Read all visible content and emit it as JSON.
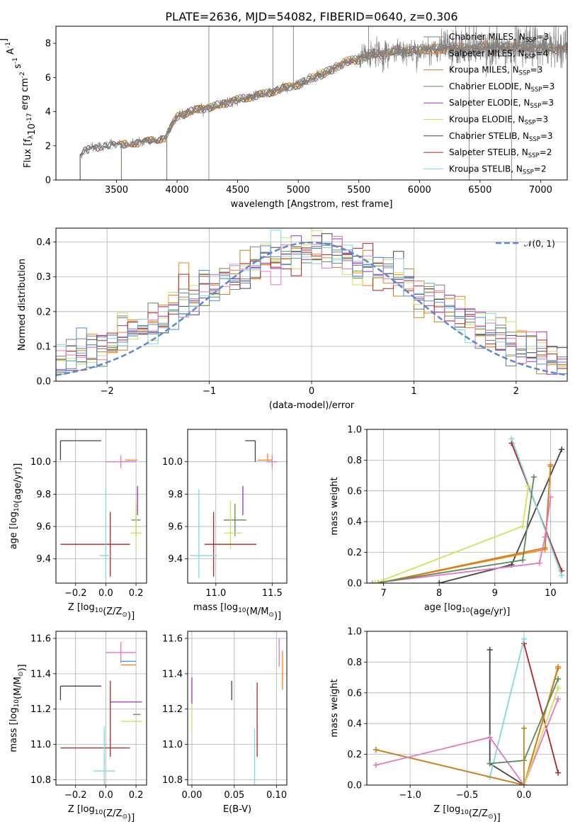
{
  "figure": {
    "title": "PLATE=2636, MJD=54082, FIBERID=0640, z=0.306"
  },
  "colors": {
    "Chabrier MILES": "#7f7f7f",
    "Salpeter MILES": "#ff7f0e",
    "Kroupa MILES": "#c8821e",
    "Chabrier ELODIE": "#5a8a5a",
    "Salpeter ELODIE": "#9b30c0",
    "Kroupa ELODIE": "#d2e05a",
    "Chabrier STELIB": "#444444",
    "Salpeter STELIB": "#b22222",
    "Kroupa STELIB": "#7fd7e0",
    "pink": "#e377c2",
    "blue": "#4f8fd0",
    "normal": "#5b87d6"
  },
  "chart_data": [
    {
      "id": "spectrum",
      "type": "line",
      "xlabel": "wavelength [Angstrom, rest frame]",
      "ylabel": "Flux [f$_\\lambda$10$^{-17}$ erg cm$^{-2}$ s$^{-1}$ A$^{-1}$]",
      "xlim": [
        3000,
        7220
      ],
      "ylim": [
        0,
        9
      ],
      "xticks": [
        3500,
        4000,
        4500,
        5000,
        5500,
        6000,
        6500,
        7000
      ],
      "yticks": [
        0,
        2,
        4,
        6,
        8
      ],
      "legend_position": "top-right",
      "legend": [
        {
          "label": "Chabrier MILES, N",
          "sub": "SSP",
          "suffix": "=3"
        },
        {
          "label": "Salpeter MILES, N",
          "sub": "SSP",
          "suffix": "=4"
        },
        {
          "label": "Kroupa MILES, N",
          "sub": "SSP",
          "suffix": "=3"
        },
        {
          "label": "Chabrier ELODIE, N",
          "sub": "SSP",
          "suffix": "=3"
        },
        {
          "label": "Salpeter ELODIE, N",
          "sub": "SSP",
          "suffix": "=3"
        },
        {
          "label": "Kroupa ELODIE, N",
          "sub": "SSP",
          "suffix": "=3"
        },
        {
          "label": "Chabrier STELIB, N",
          "sub": "SSP",
          "suffix": "=3"
        },
        {
          "label": "Salpeter STELIB, N",
          "sub": "SSP",
          "suffix": "=2"
        },
        {
          "label": "Kroupa STELIB, N",
          "sub": "SSP",
          "suffix": "=2"
        }
      ],
      "continuum": [
        [
          3200,
          1.5
        ],
        [
          3300,
          1.9
        ],
        [
          3400,
          2.0
        ],
        [
          3600,
          2.1
        ],
        [
          3700,
          2.2
        ],
        [
          3800,
          2.3
        ],
        [
          3900,
          2.5
        ],
        [
          4000,
          3.7
        ],
        [
          4100,
          4.0
        ],
        [
          4300,
          4.3
        ],
        [
          4500,
          4.7
        ],
        [
          4700,
          5.0
        ],
        [
          4900,
          5.4
        ],
        [
          5000,
          5.6
        ],
        [
          5200,
          6.2
        ],
        [
          5400,
          6.9
        ],
        [
          5600,
          7.3
        ],
        [
          5800,
          7.5
        ],
        [
          6000,
          7.6
        ],
        [
          6200,
          7.7
        ],
        [
          6400,
          7.7
        ],
        [
          6600,
          7.8
        ],
        [
          6800,
          7.8
        ],
        [
          7000,
          7.7
        ]
      ],
      "spikes": [
        [
          4262,
          9.0
        ],
        [
          4262,
          0.0
        ],
        [
          4790,
          9.0
        ],
        [
          4960,
          9.0
        ],
        [
          5580,
          9.0
        ],
        [
          6300,
          9.0
        ],
        [
          6410,
          0.0
        ],
        [
          6760,
          0.0
        ],
        [
          6790,
          9.0
        ]
      ]
    },
    {
      "id": "residual-histogram",
      "type": "histogram",
      "xlabel": "(data-model)/error",
      "ylabel": "Normed distribution",
      "xlim": [
        -2.5,
        2.5
      ],
      "ylim": [
        0,
        0.44
      ],
      "xticks": [
        -2,
        -1,
        0,
        1,
        2
      ],
      "yticks": [
        0.0,
        0.1,
        0.2,
        0.3,
        0.4
      ],
      "legend_label": "$\\mathcal{N}(0, 1)$",
      "legend_position": "top-right",
      "bin_width": 0.1
    },
    {
      "id": "age-vs-metallicity",
      "type": "errorbar",
      "xlabel": "Z [log$_{10}$(Z/Z$_\\odot$)]",
      "ylabel": "age  [log$_{10}$(age/yr)]",
      "xlim": [
        -0.33,
        0.27
      ],
      "ylim": [
        9.25,
        10.2
      ],
      "xticks": [
        -0.2,
        0.0,
        0.2
      ],
      "yticks": [
        9.4,
        9.6,
        9.8,
        10.0
      ],
      "points": [
        {
          "model": "Chabrier STELIB",
          "x": -0.3,
          "xerr": [
            0.0,
            0.27
          ],
          "y": 10.13,
          "yerr": [
            0.12,
            0.0
          ]
        },
        {
          "model": "Salpeter MILES",
          "x": 0.17,
          "xerr": [
            0.04,
            0.04
          ],
          "y": 10.01,
          "yerr": [
            0.0,
            0.0
          ]
        },
        {
          "model": "pink",
          "x": 0.1,
          "xerr": [
            0.1,
            0.1
          ],
          "y": 10.0,
          "yerr": [
            0.04,
            0.04
          ]
        },
        {
          "model": "Salpeter ELODIE",
          "x": 0.21,
          "xerr": [
            0.0,
            0.0
          ],
          "y": 9.77,
          "yerr": [
            0.1,
            0.08
          ]
        },
        {
          "model": "Chabrier ELODIE",
          "x": 0.2,
          "xerr": [
            0.03,
            0.03
          ],
          "y": 9.64,
          "yerr": [
            0.1,
            0.1
          ]
        },
        {
          "model": "Kroupa ELODIE",
          "x": 0.2,
          "xerr": [
            0.04,
            0.04
          ],
          "y": 9.56,
          "yerr": [
            0.1,
            0.2
          ]
        },
        {
          "model": "Salpeter STELIB",
          "x": 0.03,
          "xerr": [
            0.33,
            0.13
          ],
          "y": 9.49,
          "yerr": [
            0.2,
            0.2
          ]
        },
        {
          "model": "Kroupa STELIB",
          "x": 0.0,
          "xerr": [
            0.04,
            0.04
          ],
          "y": 9.42,
          "yerr": [
            0.14,
            0.41
          ]
        }
      ]
    },
    {
      "id": "age-vs-mass",
      "type": "errorbar",
      "xlabel": "mass [log$_{10}$(M/M$_\\odot$)]",
      "ylabel": "",
      "xlim": [
        10.75,
        11.63
      ],
      "ylim": [
        9.25,
        10.2
      ],
      "xticks": [
        11.0,
        11.5
      ],
      "yticks": [
        9.4,
        9.6,
        9.8,
        10.0
      ],
      "points": [
        {
          "model": "Chabrier STELIB",
          "x": 11.35,
          "xerr": [
            0.09,
            0.0
          ],
          "y": 10.13,
          "yerr": [
            0.13,
            0.0
          ]
        },
        {
          "model": "Salpeter MILES",
          "x": 11.46,
          "xerr": [
            0.09,
            0.04
          ],
          "y": 10.01,
          "yerr": [
            0.0,
            0.04
          ]
        },
        {
          "model": "pink",
          "x": 11.5,
          "xerr": [
            0.05,
            0.05
          ],
          "y": 10.0,
          "yerr": [
            0.04,
            0.04
          ]
        },
        {
          "model": "Salpeter ELODIE",
          "x": 11.24,
          "xerr": [
            0.0,
            0.0
          ],
          "y": 9.77,
          "yerr": [
            0.1,
            0.08
          ]
        },
        {
          "model": "Chabrier ELODIE",
          "x": 11.17,
          "xerr": [
            0.1,
            0.1
          ],
          "y": 9.64,
          "yerr": [
            0.1,
            0.1
          ]
        },
        {
          "model": "Kroupa ELODIE",
          "x": 11.13,
          "xerr": [
            0.06,
            0.1
          ],
          "y": 9.56,
          "yerr": [
            0.1,
            0.2
          ]
        },
        {
          "model": "Salpeter STELIB",
          "x": 10.98,
          "xerr": [
            0.08,
            0.38
          ],
          "y": 9.49,
          "yerr": [
            0.2,
            0.2
          ]
        },
        {
          "model": "Kroupa STELIB",
          "x": 10.85,
          "xerr": [
            0.08,
            0.16
          ],
          "y": 9.42,
          "yerr": [
            0.14,
            0.41
          ]
        }
      ]
    },
    {
      "id": "mass-weight-vs-age",
      "type": "line",
      "xlabel": "age  [log$_{10}$(age/yr)]",
      "ylabel": "mass weight",
      "xlim": [
        6.7,
        10.3
      ],
      "ylim": [
        0,
        1
      ],
      "xticks": [
        7,
        8,
        9,
        10
      ],
      "yticks": [
        0.0,
        0.2,
        0.4,
        0.6,
        0.8,
        1.0
      ],
      "series": [
        {
          "model": "Chabrier STELIB",
          "points": [
            [
              8.0,
              0.0
            ],
            [
              9.3,
              0.12
            ],
            [
              10.2,
              0.87
            ]
          ]
        },
        {
          "model": "Salpeter STELIB",
          "points": [
            [
              9.3,
              0.91
            ],
            [
              10.2,
              0.08
            ]
          ]
        },
        {
          "model": "Kroupa STELIB",
          "points": [
            [
              9.3,
              0.94
            ],
            [
              10.2,
              0.05
            ]
          ]
        },
        {
          "model": "Salpeter MILES",
          "points": [
            [
              6.9,
              0.0
            ],
            [
              9.9,
              0.22
            ],
            [
              10.0,
              0.77
            ]
          ]
        },
        {
          "model": "Kroupa MILES",
          "points": [
            [
              6.9,
              0.0
            ],
            [
              9.9,
              0.23
            ],
            [
              10.0,
              0.76
            ]
          ]
        },
        {
          "model": "pink",
          "points": [
            [
              6.8,
              0.0
            ],
            [
              9.8,
              0.13
            ],
            [
              9.9,
              0.3
            ],
            [
              10.0,
              0.56
            ]
          ]
        },
        {
          "model": "Chabrier ELODIE",
          "points": [
            [
              6.85,
              0.0
            ],
            [
              9.5,
              0.15
            ],
            [
              9.7,
              0.69
            ]
          ]
        },
        {
          "model": "Kroupa ELODIE",
          "points": [
            [
              6.85,
              0.0
            ],
            [
              9.5,
              0.37
            ],
            [
              9.6,
              0.63
            ]
          ]
        }
      ]
    },
    {
      "id": "mass-vs-metallicity",
      "type": "errorbar",
      "xlabel": "Z [log$_{10}$(Z/Z$_\\odot$)]",
      "ylabel": "mass [log$_{10}$(M/M$_\\odot$)]",
      "xlim": [
        -0.33,
        0.27
      ],
      "ylim": [
        10.77,
        11.64
      ],
      "xticks": [
        -0.2,
        0.0,
        0.2
      ],
      "yticks": [
        10.8,
        11.0,
        11.2,
        11.4,
        11.6
      ],
      "points": [
        {
          "model": "pink",
          "x": 0.1,
          "xerr": [
            0.1,
            0.1
          ],
          "y": 11.52,
          "yerr": [
            0.06,
            0.06
          ]
        },
        {
          "model": "blue",
          "x": 0.2,
          "xerr": [
            0.1,
            0.0
          ],
          "y": 11.47,
          "yerr": [
            0.0,
            0.0
          ]
        },
        {
          "model": "Salpeter MILES",
          "x": 0.2,
          "xerr": [
            0.1,
            0.0
          ],
          "y": 11.45,
          "yerr": [
            0.0,
            0.0
          ]
        },
        {
          "model": "Chabrier STELIB",
          "x": -0.3,
          "xerr": [
            0.0,
            0.27
          ],
          "y": 11.33,
          "yerr": [
            0.08,
            0.0
          ]
        },
        {
          "model": "Salpeter ELODIE",
          "x": 0.21,
          "xerr": [
            0.18,
            0.03
          ],
          "y": 11.24,
          "yerr": [
            0.0,
            0.0
          ]
        },
        {
          "model": "Chabrier ELODIE",
          "x": 0.2,
          "xerr": [
            0.02,
            0.03
          ],
          "y": 11.17,
          "yerr": [
            0.0,
            0.0
          ]
        },
        {
          "model": "Kroupa ELODIE",
          "x": 0.2,
          "xerr": [
            0.1,
            0.04
          ],
          "y": 11.13,
          "yerr": [
            0.0,
            0.0
          ]
        },
        {
          "model": "Salpeter STELIB",
          "x": 0.03,
          "xerr": [
            0.33,
            0.13
          ],
          "y": 10.98,
          "yerr": [
            0.05,
            0.38
          ]
        },
        {
          "model": "Kroupa STELIB",
          "x": -0.01,
          "xerr": [
            0.07,
            0.07
          ],
          "y": 10.85,
          "yerr": [
            0.08,
            0.25
          ]
        }
      ]
    },
    {
      "id": "mass-vs-extinction",
      "type": "errorbar",
      "xlabel": "E(B-V)",
      "ylabel": "",
      "xlim": [
        -0.005,
        0.112
      ],
      "ylim": [
        10.77,
        11.64
      ],
      "xticks": [
        0.0,
        0.05,
        0.1
      ],
      "yticks": [
        10.8,
        11.0,
        11.2,
        11.4,
        11.6
      ],
      "points": [
        {
          "model": "Salpeter ELODIE",
          "x": 0.0,
          "xerr": [
            0,
            0
          ],
          "y": 11.3,
          "yerr": [
            0.07,
            0.08
          ]
        },
        {
          "model": "Kroupa ELODIE",
          "x": 0.0,
          "xerr": [
            0,
            0
          ],
          "y": 11.13,
          "yerr": [
            0.06,
            0.1
          ]
        },
        {
          "model": "Chabrier STELIB",
          "x": 0.047,
          "xerr": [
            0,
            0
          ],
          "y": 11.31,
          "yerr": [
            0.06,
            0.05
          ]
        },
        {
          "model": "Kroupa STELIB",
          "x": 0.074,
          "xerr": [
            0,
            0
          ],
          "y": 10.96,
          "yerr": [
            0.21,
            0.13
          ]
        },
        {
          "model": "Salpeter STELIB",
          "x": 0.077,
          "xerr": [
            0,
            0
          ],
          "y": 11.14,
          "yerr": [
            0.21,
            0.21
          ]
        },
        {
          "model": "pink",
          "x": 0.103,
          "xerr": [
            0,
            0
          ],
          "y": 11.52,
          "yerr": [
            0.08,
            0.08
          ]
        },
        {
          "model": "Salpeter MILES",
          "x": 0.107,
          "xerr": [
            0,
            0
          ],
          "y": 11.42,
          "yerr": [
            0.11,
            0.11
          ]
        }
      ]
    },
    {
      "id": "mass-weight-vs-metallicity",
      "type": "line",
      "xlabel": "Z [log$_{10}$(Z/Z$_\\odot$)]",
      "ylabel": "mass weight",
      "xlim": [
        -1.38,
        0.38
      ],
      "ylim": [
        0,
        1
      ],
      "xticks": [
        -1.0,
        -0.5,
        0.0
      ],
      "yticks": [
        0.0,
        0.2,
        0.4,
        0.6,
        0.8,
        1.0
      ],
      "series": [
        {
          "model": "Chabrier STELIB",
          "points": [
            [
              -0.3,
              0.88
            ],
            [
              -0.3,
              0.14
            ],
            [
              0.0,
              0.0
            ]
          ]
        },
        {
          "model": "Salpeter STELIB",
          "points": [
            [
              0.0,
              0.92
            ],
            [
              0.3,
              0.08
            ]
          ]
        },
        {
          "model": "Kroupa STELIB",
          "points": [
            [
              -0.3,
              0.05
            ],
            [
              0.0,
              0.95
            ]
          ]
        },
        {
          "model": "Salpeter MILES",
          "points": [
            [
              -1.3,
              0.23
            ],
            [
              0.0,
              0.0
            ],
            [
              0.3,
              0.77
            ]
          ]
        },
        {
          "model": "Kroupa MILES",
          "points": [
            [
              -1.3,
              0.23
            ],
            [
              0.0,
              0.0
            ],
            [
              0.3,
              0.76
            ]
          ]
        },
        {
          "model": "pink",
          "points": [
            [
              -1.3,
              0.13
            ],
            [
              -0.3,
              0.31
            ],
            [
              0.0,
              0.0
            ],
            [
              0.3,
              0.56
            ]
          ]
        },
        {
          "model": "Chabrier ELODIE",
          "points": [
            [
              -0.3,
              0.14
            ],
            [
              0.0,
              0.16
            ],
            [
              0.3,
              0.69
            ]
          ]
        },
        {
          "model": "Kroupa ELODIE",
          "points": [
            [
              0.0,
              0.0
            ],
            [
              0.3,
              0.63
            ]
          ]
        },
        {
          "model": "Kroupa MILES",
          "points": [
            [
              0.0,
              0.37
            ],
            [
              0.0,
              0.0
            ]
          ]
        }
      ]
    }
  ]
}
